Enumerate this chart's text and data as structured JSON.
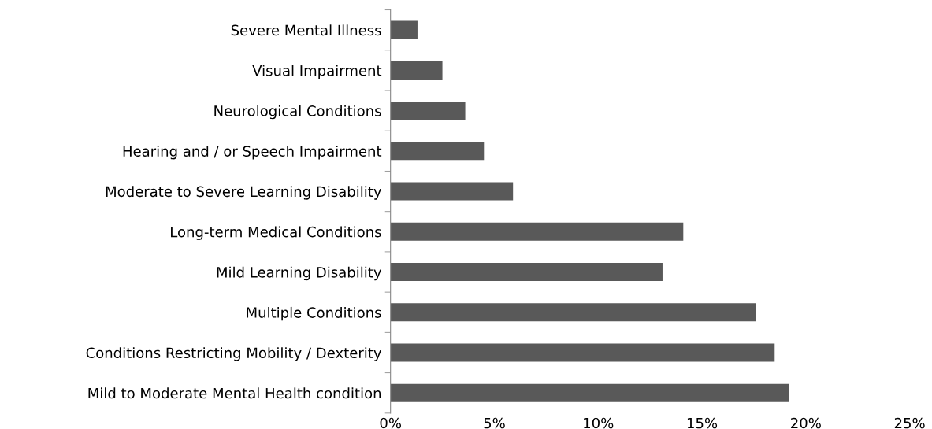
{
  "chart_data": {
    "type": "bar",
    "orientation": "horizontal",
    "categories": [
      "Severe Mental Illness",
      "Visual Impairment",
      "Neurological Conditions",
      "Hearing and / or Speech Impairment",
      "Moderate to Severe Learning Disability",
      "Long-term Medical Conditions",
      "Mild Learning Disability",
      "Multiple Conditions",
      "Conditions Restricting Mobility / Dexterity",
      "Mild to Moderate Mental Health condition"
    ],
    "values": [
      1.3,
      2.5,
      3.6,
      4.5,
      5.9,
      14.1,
      13.1,
      17.6,
      18.5,
      19.2
    ],
    "color": "#595959",
    "xlim": [
      0,
      25
    ],
    "xticks": [
      {
        "value": 0,
        "label": "0%"
      },
      {
        "value": 5,
        "label": "5%"
      },
      {
        "value": 10,
        "label": "10%"
      },
      {
        "value": 15,
        "label": "15%"
      },
      {
        "value": 20,
        "label": "20%"
      },
      {
        "value": 25,
        "label": "25%"
      }
    ],
    "grid": false
  }
}
